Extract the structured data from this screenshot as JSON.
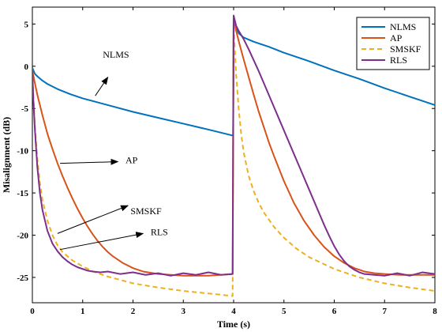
{
  "chart_data": {
    "type": "line",
    "title": "",
    "xlabel": "Time (s)",
    "ylabel": "Misalignment (dB)",
    "xlim": [
      0,
      8
    ],
    "ylim": [
      -28,
      7
    ],
    "xticks": [
      0,
      1,
      2,
      3,
      4,
      5,
      6,
      7,
      8
    ],
    "yticks": [
      5,
      0,
      -5,
      -10,
      -15,
      -20,
      -25
    ],
    "grid": false,
    "legend_position": "top-right",
    "series": [
      {
        "name": "NLMS",
        "color": "#0072BD",
        "dash": "solid",
        "x": [
          0,
          0.05,
          0.1,
          0.2,
          0.3,
          0.5,
          0.75,
          1,
          1.5,
          2,
          2.5,
          3,
          3.5,
          3.98,
          3.99,
          4.0,
          4.02,
          4.05,
          4.1,
          4.2,
          4.4,
          4.7,
          5,
          5.5,
          6,
          6.5,
          7,
          7.5,
          8
        ],
        "y": [
          -0.2,
          -0.9,
          -1.2,
          -1.7,
          -2.1,
          -2.7,
          -3.3,
          -3.8,
          -4.6,
          -5.4,
          -6.1,
          -6.8,
          -7.5,
          -8.2,
          -8.2,
          6.0,
          5.3,
          4.6,
          3.9,
          3.4,
          2.9,
          2.3,
          1.6,
          0.6,
          -0.5,
          -1.5,
          -2.6,
          -3.6,
          -4.6
        ]
      },
      {
        "name": "AP",
        "color": "#D95319",
        "dash": "solid",
        "x": [
          0,
          0.05,
          0.1,
          0.2,
          0.3,
          0.4,
          0.5,
          0.6,
          0.7,
          0.8,
          0.9,
          1.0,
          1.1,
          1.2,
          1.3,
          1.4,
          1.5,
          1.6,
          1.8,
          2.0,
          2.2,
          2.5,
          3.0,
          3.5,
          3.98,
          4.0,
          4.05,
          4.1,
          4.2,
          4.3,
          4.4,
          4.5,
          4.6,
          4.7,
          4.8,
          5.0,
          5.2,
          5.4,
          5.6,
          5.8,
          6.0,
          6.2,
          6.4,
          6.6,
          6.8,
          7.0,
          7.3,
          7.6,
          8.0
        ],
        "y": [
          -0.5,
          -2.0,
          -3.4,
          -5.8,
          -8.0,
          -9.8,
          -11.5,
          -13.0,
          -14.4,
          -15.7,
          -16.9,
          -18.0,
          -19.0,
          -19.9,
          -20.7,
          -21.4,
          -22.0,
          -22.5,
          -23.3,
          -23.9,
          -24.3,
          -24.6,
          -24.8,
          -24.8,
          -24.6,
          5.8,
          4.2,
          3.0,
          0.8,
          -1.3,
          -3.4,
          -5.4,
          -7.2,
          -9.0,
          -10.6,
          -13.6,
          -16.2,
          -18.3,
          -20.0,
          -21.4,
          -22.5,
          -23.3,
          -23.9,
          -24.3,
          -24.5,
          -24.6,
          -24.7,
          -24.7,
          -24.7
        ]
      },
      {
        "name": "SMSKF",
        "color": "#EDB120",
        "dash": "dashed",
        "x": [
          0,
          0.02,
          0.05,
          0.1,
          0.15,
          0.2,
          0.3,
          0.4,
          0.5,
          0.6,
          0.8,
          1.0,
          1.25,
          1.5,
          2.0,
          2.5,
          3.0,
          3.5,
          3.98,
          4.0,
          4.02,
          4.05,
          4.1,
          4.15,
          4.2,
          4.3,
          4.4,
          4.5,
          4.6,
          4.8,
          5.0,
          5.25,
          5.5,
          6.0,
          6.5,
          7.0,
          7.5,
          8.0
        ],
        "y": [
          -0.5,
          -3.5,
          -7.0,
          -11.0,
          -13.8,
          -15.8,
          -18.3,
          -20.0,
          -21.2,
          -22.0,
          -23.0,
          -23.7,
          -24.4,
          -24.9,
          -25.7,
          -26.2,
          -26.6,
          -26.9,
          -27.2,
          5.5,
          2.5,
          -1.0,
          -5.0,
          -8.0,
          -10.2,
          -13.0,
          -14.8,
          -16.2,
          -17.3,
          -19.0,
          -20.3,
          -21.6,
          -22.6,
          -24.0,
          -25.0,
          -25.7,
          -26.2,
          -26.6
        ]
      },
      {
        "name": "RLS",
        "color": "#7E2F8E",
        "dash": "solid",
        "x": [
          0,
          0.02,
          0.05,
          0.1,
          0.15,
          0.2,
          0.3,
          0.4,
          0.5,
          0.6,
          0.7,
          0.8,
          0.9,
          1.0,
          1.1,
          1.2,
          1.35,
          1.5,
          1.75,
          2.0,
          2.25,
          2.5,
          2.75,
          3.0,
          3.25,
          3.5,
          3.75,
          3.98,
          4.0,
          4.05,
          4.1,
          4.2,
          4.3,
          4.4,
          4.5,
          4.6,
          4.7,
          4.8,
          4.9,
          5.0,
          5.1,
          5.2,
          5.3,
          5.4,
          5.5,
          5.6,
          5.7,
          5.8,
          5.9,
          6.0,
          6.1,
          6.2,
          6.3,
          6.4,
          6.5,
          6.6,
          6.8,
          7.0,
          7.25,
          7.5,
          7.75,
          8.0
        ],
        "y": [
          -0.5,
          -4.0,
          -7.5,
          -12.0,
          -15.0,
          -17.0,
          -19.5,
          -21.0,
          -21.9,
          -22.6,
          -23.1,
          -23.5,
          -23.8,
          -24.0,
          -24.2,
          -24.3,
          -24.4,
          -24.3,
          -24.6,
          -24.4,
          -24.7,
          -24.5,
          -24.8,
          -24.5,
          -24.7,
          -24.4,
          -24.7,
          -24.6,
          6.0,
          4.8,
          4.2,
          3.2,
          2.0,
          0.7,
          -0.6,
          -2.0,
          -3.4,
          -4.8,
          -6.2,
          -7.6,
          -9.0,
          -10.4,
          -11.8,
          -13.2,
          -14.6,
          -16.0,
          -17.4,
          -18.8,
          -20.1,
          -21.3,
          -22.3,
          -23.1,
          -23.7,
          -24.1,
          -24.4,
          -24.6,
          -24.7,
          -24.8,
          -24.5,
          -24.8,
          -24.4,
          -24.6
        ]
      }
    ],
    "annotations": [
      {
        "text": "NLMS",
        "label_x": 1.4,
        "label_y": 1.0,
        "arrow_from": [
          1.25,
          -3.5
        ],
        "arrow_to": [
          1.5,
          -1.3
        ]
      },
      {
        "text": "AP",
        "label_x": 1.85,
        "label_y": -11.5,
        "arrow_from": [
          0.55,
          -11.5
        ],
        "arrow_to": [
          1.7,
          -11.3
        ]
      },
      {
        "text": "SMSKF",
        "label_x": 1.95,
        "label_y": -17.5,
        "arrow_from": [
          0.5,
          -19.8
        ],
        "arrow_to": [
          1.9,
          -16.5
        ]
      },
      {
        "text": "RLS",
        "label_x": 2.35,
        "label_y": -20.0,
        "arrow_from": [
          0.55,
          -21.7
        ],
        "arrow_to": [
          2.2,
          -19.8
        ]
      }
    ]
  }
}
